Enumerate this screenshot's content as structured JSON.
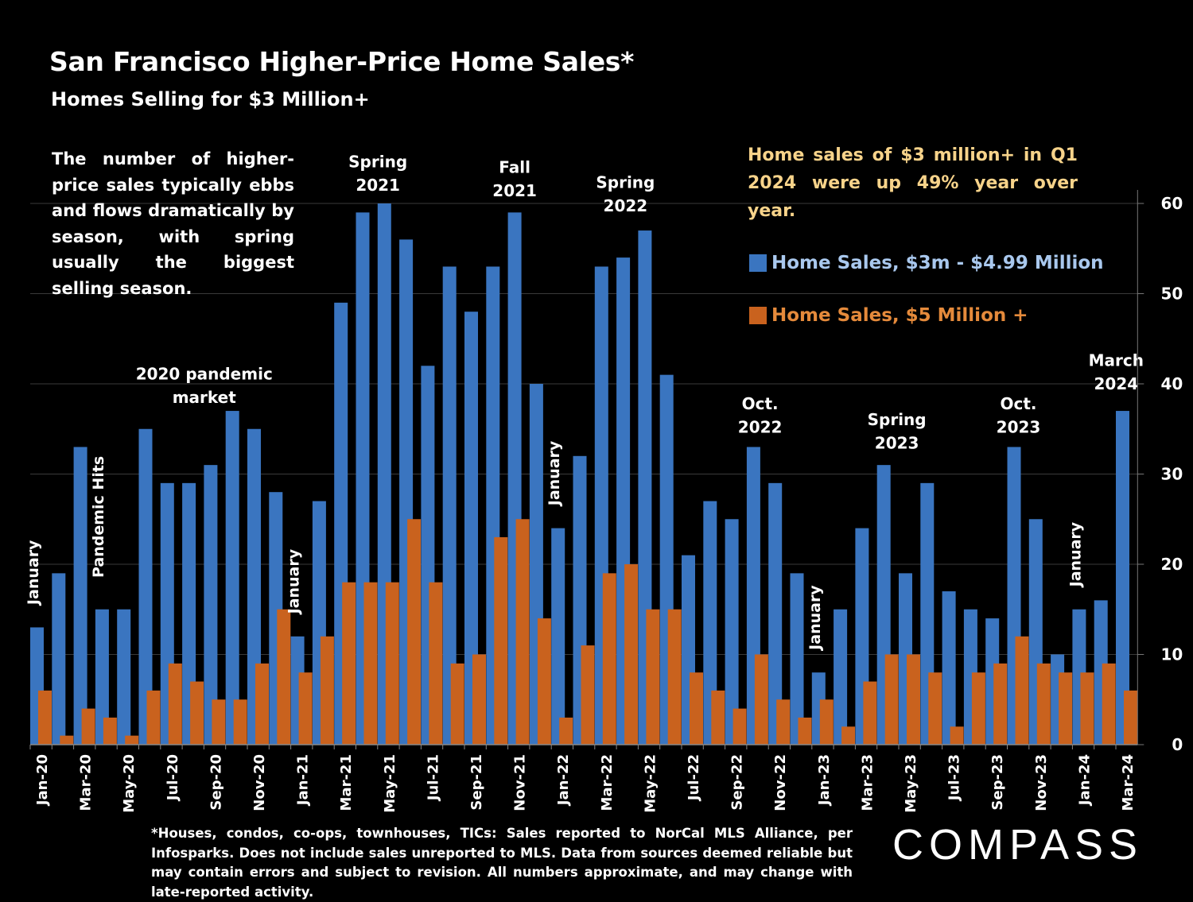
{
  "title": "San Francisco Higher-Price Home Sales*",
  "subtitle": "Homes Selling for $3 Million+",
  "note_left": "The number of higher-price sales typically ebbs and flows dramatically by season, with spring usually the biggest selling season.",
  "note_right": "Home sales of $3 million+ in Q1 2024 were up 49% year over year.",
  "footnote": "*Houses, condos, co-ops, townhouses, TICs:  Sales reported to NorCal MLS Alliance, per Infosparks. Does not include sales unreported to MLS. Data from sources deemed reliable but may contain errors and subject to revision.  All numbers approximate, and may change with late-reported activity.",
  "brand": "COMPASS",
  "colors": {
    "series1": "#3a75c0",
    "series2": "#c9621e",
    "background": "#000000"
  },
  "chart_data": {
    "type": "bar",
    "ylim": [
      0,
      60
    ],
    "yticks": [
      0,
      10,
      20,
      30,
      40,
      50,
      60
    ],
    "categories": [
      "Jan-20",
      "Feb-20",
      "Mar-20",
      "Apr-20",
      "May-20",
      "Jun-20",
      "Jul-20",
      "Aug-20",
      "Sep-20",
      "Oct-20",
      "Nov-20",
      "Dec-20",
      "Jan-21",
      "Feb-21",
      "Mar-21",
      "Apr-21",
      "May-21",
      "Jun-21",
      "Jul-21",
      "Aug-21",
      "Sep-21",
      "Oct-21",
      "Nov-21",
      "Dec-21",
      "Jan-22",
      "Feb-22",
      "Mar-22",
      "Apr-22",
      "May-22",
      "Jun-22",
      "Jul-22",
      "Aug-22",
      "Sep-22",
      "Oct-22",
      "Nov-22",
      "Dec-22",
      "Jan-23",
      "Feb-23",
      "Mar-23",
      "Apr-23",
      "May-23",
      "Jun-23",
      "Jul-23",
      "Aug-23",
      "Sep-23",
      "Oct-23",
      "Nov-23",
      "Dec-23",
      "Jan-24",
      "Feb-24",
      "Mar-24"
    ],
    "shown_x_labels": [
      "Jan-20",
      "Mar-20",
      "May-20",
      "Jul-20",
      "Sep-20",
      "Nov-20",
      "Jan-21",
      "Mar-21",
      "May-21",
      "Jul-21",
      "Sep-21",
      "Nov-21",
      "Jan-22",
      "Mar-22",
      "May-22",
      "Jul-22",
      "Sep-22",
      "Nov-22",
      "Jan-23",
      "Mar-23",
      "May-23",
      "Jul-23",
      "Sep-23",
      "Nov-23",
      "Jan-24",
      "Mar-24"
    ],
    "series": [
      {
        "name": "Home Sales, $3m - $4.99 Million",
        "values": [
          13,
          19,
          33,
          15,
          15,
          35,
          29,
          29,
          31,
          37,
          35,
          28,
          12,
          27,
          49,
          59,
          60,
          56,
          42,
          53,
          48,
          53,
          59,
          40,
          24,
          32,
          53,
          54,
          57,
          41,
          21,
          27,
          25,
          33,
          29,
          19,
          8,
          15,
          24,
          31,
          19,
          29,
          17,
          15,
          14,
          33,
          25,
          10,
          15,
          16,
          37
        ]
      },
      {
        "name": "Home Sales, $5 Million +",
        "values": [
          6,
          1,
          4,
          3,
          1,
          6,
          9,
          7,
          5,
          5,
          9,
          15,
          8,
          12,
          18,
          18,
          18,
          25,
          18,
          9,
          10,
          23,
          25,
          14,
          3,
          11,
          19,
          20,
          15,
          15,
          8,
          6,
          4,
          10,
          5,
          3,
          5,
          2,
          7,
          10,
          10,
          8,
          2,
          8,
          9,
          12,
          9,
          8,
          8,
          9,
          6
        ]
      }
    ],
    "annotations": [
      {
        "text": "January",
        "index": 0,
        "y": 15.5,
        "vertical": true
      },
      {
        "text": "Pandemic Hits",
        "index": 3,
        "y": 18.5,
        "vertical": true
      },
      {
        "text": "January",
        "index": 12,
        "y": 14.5,
        "vertical": true
      },
      {
        "text": "January",
        "index": 24,
        "y": 26.5,
        "vertical": true
      },
      {
        "text": "January",
        "index": 36,
        "y": 10.5,
        "vertical": true
      },
      {
        "text": "January",
        "index": 48,
        "y": 17.5,
        "vertical": true
      },
      {
        "text": "2020 pandemic",
        "index": 7.5,
        "y": 40.5,
        "vertical": false
      },
      {
        "text": "market",
        "index": 7.5,
        "y": 37.9,
        "vertical": false
      },
      {
        "text": "Spring",
        "index": 15.5,
        "y": 64.0,
        "vertical": false
      },
      {
        "text": "2021",
        "index": 15.5,
        "y": 61.4,
        "vertical": false
      },
      {
        "text": "Fall",
        "index": 21.8,
        "y": 63.4,
        "vertical": false
      },
      {
        "text": "2021",
        "index": 21.8,
        "y": 60.8,
        "vertical": false
      },
      {
        "text": "Spring",
        "index": 26.9,
        "y": 61.7,
        "vertical": false
      },
      {
        "text": "2022",
        "index": 26.9,
        "y": 59.1,
        "vertical": false
      },
      {
        "text": "Oct.",
        "index": 33.1,
        "y": 37.2,
        "vertical": false
      },
      {
        "text": "2022",
        "index": 33.1,
        "y": 34.6,
        "vertical": false
      },
      {
        "text": "Spring",
        "index": 39.4,
        "y": 35.4,
        "vertical": false
      },
      {
        "text": "2023",
        "index": 39.4,
        "y": 32.8,
        "vertical": false
      },
      {
        "text": "Oct.",
        "index": 45.0,
        "y": 37.2,
        "vertical": false
      },
      {
        "text": "2023",
        "index": 45.0,
        "y": 34.6,
        "vertical": false
      },
      {
        "text": "March",
        "index": 49.5,
        "y": 42.0,
        "vertical": false
      },
      {
        "text": "2024",
        "index": 49.5,
        "y": 39.4,
        "vertical": false
      }
    ]
  }
}
